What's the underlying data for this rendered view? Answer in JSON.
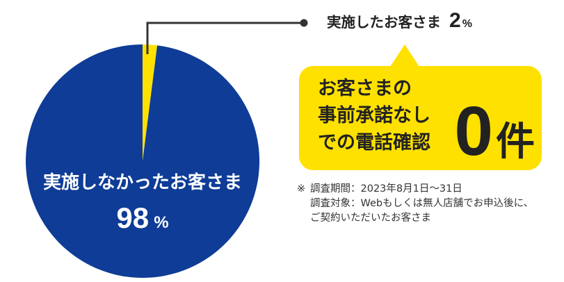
{
  "chart_data": {
    "type": "pie",
    "slices": [
      {
        "label": "実施したお客さま",
        "value": 2,
        "color": "#ffe100"
      },
      {
        "label": "実施しなかったお客さま",
        "value": 98,
        "color": "#0e3c96"
      }
    ],
    "unit": "%"
  },
  "callout": {
    "lines": [
      "お客さまの",
      "事前承諾なし",
      "での電話確認"
    ],
    "count": "0",
    "count_unit": "件"
  },
  "note": {
    "mark": "※",
    "lines": [
      "調査期間：2023年8月1日～31日",
      "調査対象：Webもしくは無人店舗でお申込後に、",
      "ご契約いただいたお客さま"
    ]
  }
}
